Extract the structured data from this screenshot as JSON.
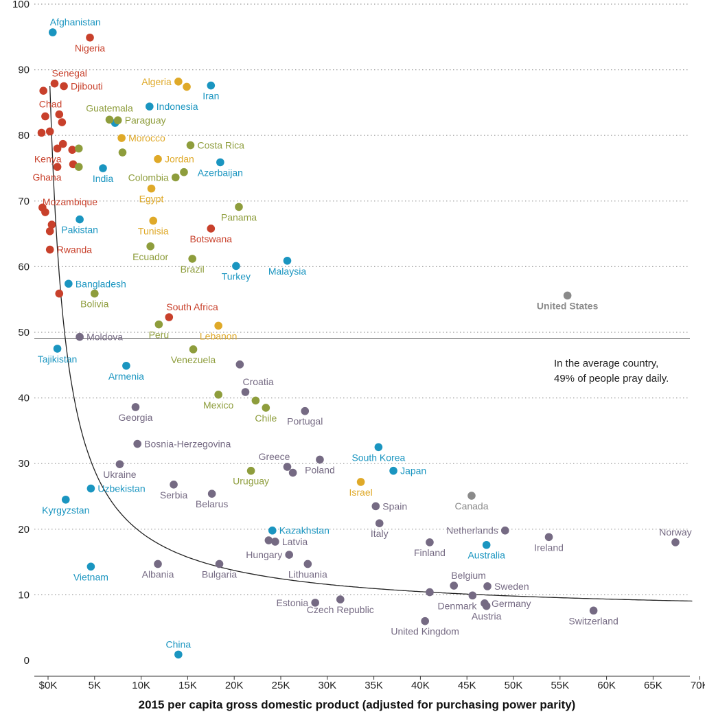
{
  "colors": {
    "Africa": "#c8402b",
    "Asia": "#1a95c0",
    "Middle East": "#dfa928",
    "Latin America": "#8e9d3c",
    "Europe": "#756a83",
    "North America": "#8a8a8a"
  },
  "chart_data": {
    "type": "scatter",
    "title": "",
    "xlabel": "2015 per capita gross domestic product (adjusted for purchasing power parity)",
    "ylabel": "",
    "xlim": [
      -2000,
      70000
    ],
    "ylim": [
      0,
      100
    ],
    "x_ticks": [
      0,
      5000,
      10000,
      15000,
      20000,
      25000,
      30000,
      35000,
      40000,
      45000,
      50000,
      55000,
      60000,
      65000,
      70000
    ],
    "x_tick_labels": [
      "$0K",
      "5K",
      "10K",
      "15K",
      "20K",
      "25K",
      "30K",
      "35K",
      "40K",
      "45K",
      "50K",
      "55K",
      "60K",
      "65K",
      "70K"
    ],
    "y_ticks": [
      0,
      10,
      20,
      30,
      40,
      50,
      60,
      70,
      80,
      90,
      100
    ],
    "y_tick_labels": [
      "0",
      "10",
      "20",
      "30",
      "40",
      "50",
      "60",
      "70",
      "80",
      "90",
      "100"
    ],
    "grid": "horizontal dotted",
    "average_line": {
      "y": 49,
      "label_line1": "In the average country,",
      "label_line2": "49% of people pray daily."
    },
    "trend_curve": true,
    "points": [
      {
        "x": 500,
        "y": 95.7,
        "label": "Afghanistan",
        "region": "Asia",
        "lp": "tr"
      },
      {
        "x": 4500,
        "y": 94.9,
        "label": "Nigeria",
        "region": "Africa",
        "lp": "b"
      },
      {
        "x": 700,
        "y": 87.9,
        "label": "Senegal",
        "region": "Africa",
        "lp": "tr"
      },
      {
        "x": 1700,
        "y": 87.5,
        "label": "Djibouti",
        "region": "Africa",
        "lp": "r"
      },
      {
        "x": -500,
        "y": 86.8,
        "label": "",
        "region": "Africa"
      },
      {
        "x": 1200,
        "y": 83.2,
        "label": "Chad",
        "region": "Africa",
        "lp": "tl"
      },
      {
        "x": -300,
        "y": 82.9,
        "label": "",
        "region": "Africa"
      },
      {
        "x": 1500,
        "y": 82.0,
        "label": "",
        "region": "Africa"
      },
      {
        "x": -700,
        "y": 80.4,
        "label": "",
        "region": "Africa"
      },
      {
        "x": 200,
        "y": 80.6,
        "label": "",
        "region": "Africa"
      },
      {
        "x": 1600,
        "y": 78.7,
        "label": "",
        "region": "Africa"
      },
      {
        "x": 2600,
        "y": 77.8,
        "label": "",
        "region": "Africa"
      },
      {
        "x": 2700,
        "y": 75.6,
        "label": "",
        "region": "Africa"
      },
      {
        "x": 1000,
        "y": 78.0,
        "label": "Kenya",
        "region": "Africa",
        "lp": "bl"
      },
      {
        "x": 1000,
        "y": 75.2,
        "label": "Ghana",
        "region": "Africa",
        "lp": "bl"
      },
      {
        "x": -600,
        "y": 69.0,
        "label": "",
        "region": "Africa"
      },
      {
        "x": -300,
        "y": 68.3,
        "label": "Mozambique",
        "region": "Africa",
        "lp": "tr"
      },
      {
        "x": 400,
        "y": 66.4,
        "label": "",
        "region": "Africa"
      },
      {
        "x": 200,
        "y": 65.4,
        "label": "",
        "region": "Africa"
      },
      {
        "x": 200,
        "y": 62.6,
        "label": "Rwanda",
        "region": "Africa",
        "lp": "r"
      },
      {
        "x": 1200,
        "y": 55.9,
        "label": "",
        "region": "Africa"
      },
      {
        "x": 17500,
        "y": 65.8,
        "label": "Botswana",
        "region": "Africa",
        "lp": "b"
      },
      {
        "x": 13000,
        "y": 52.3,
        "label": "South Africa",
        "region": "Africa",
        "lp": "tr"
      },
      {
        "x": 17500,
        "y": 87.6,
        "label": "Iran",
        "region": "Asia",
        "lp": "b"
      },
      {
        "x": 10900,
        "y": 84.4,
        "label": "Indonesia",
        "region": "Asia",
        "lp": "r"
      },
      {
        "x": 7200,
        "y": 81.9,
        "label": "",
        "region": "Asia"
      },
      {
        "x": 18500,
        "y": 75.9,
        "label": "Azerbaijan",
        "region": "Asia",
        "lp": "b"
      },
      {
        "x": 5900,
        "y": 75.0,
        "label": "India",
        "region": "Asia",
        "lp": "b"
      },
      {
        "x": 3400,
        "y": 67.2,
        "label": "Pakistan",
        "region": "Asia",
        "lp": "b"
      },
      {
        "x": 20200,
        "y": 60.1,
        "label": "Turkey",
        "region": "Asia",
        "lp": "b"
      },
      {
        "x": 25700,
        "y": 60.9,
        "label": "Malaysia",
        "region": "Asia",
        "lp": "b"
      },
      {
        "x": 2200,
        "y": 57.4,
        "label": "Bangladesh",
        "region": "Asia",
        "lp": "r"
      },
      {
        "x": 1000,
        "y": 47.5,
        "label": "Tajikistan",
        "region": "Asia",
        "lp": "b"
      },
      {
        "x": 8400,
        "y": 44.9,
        "label": "Armenia",
        "region": "Asia",
        "lp": "b"
      },
      {
        "x": 35500,
        "y": 32.5,
        "label": "South Korea",
        "region": "Asia",
        "lp": "b"
      },
      {
        "x": 37100,
        "y": 28.9,
        "label": "Japan",
        "region": "Asia",
        "lp": "r"
      },
      {
        "x": 4600,
        "y": 26.2,
        "label": "Uzbekistan",
        "region": "Asia",
        "lp": "r"
      },
      {
        "x": 1900,
        "y": 24.5,
        "label": "Kyrgyzstan",
        "region": "Asia",
        "lp": "b"
      },
      {
        "x": 24100,
        "y": 19.8,
        "label": "Kazakhstan",
        "region": "Asia",
        "lp": "r"
      },
      {
        "x": 47100,
        "y": 17.6,
        "label": "Australia",
        "region": "Asia",
        "lp": "b"
      },
      {
        "x": 4600,
        "y": 14.3,
        "label": "Vietnam",
        "region": "Asia",
        "lp": "b"
      },
      {
        "x": 14000,
        "y": 0.9,
        "label": "China",
        "region": "Asia",
        "lp": "t"
      },
      {
        "x": 14000,
        "y": 88.2,
        "label": "Algeria",
        "region": "Middle East",
        "lp": "l"
      },
      {
        "x": 14900,
        "y": 87.4,
        "label": "",
        "region": "Middle East"
      },
      {
        "x": 7900,
        "y": 79.6,
        "label": "Morocco",
        "region": "Middle East",
        "lp": "r"
      },
      {
        "x": 11800,
        "y": 76.4,
        "label": "Jordan",
        "region": "Middle East",
        "lp": "r"
      },
      {
        "x": 11100,
        "y": 71.9,
        "label": "Egypt",
        "region": "Middle East",
        "lp": "b"
      },
      {
        "x": 11300,
        "y": 67.0,
        "label": "Tunisia",
        "region": "Middle East",
        "lp": "b"
      },
      {
        "x": 18300,
        "y": 51.0,
        "label": "Lebanon",
        "region": "Middle East",
        "lp": "b"
      },
      {
        "x": 33600,
        "y": 27.2,
        "label": "Israel",
        "region": "Middle East",
        "lp": "b"
      },
      {
        "x": 6600,
        "y": 82.4,
        "label": "Guatemala",
        "region": "Latin America",
        "lp": "tc"
      },
      {
        "x": 7500,
        "y": 82.3,
        "label": "Paraguay",
        "region": "Latin America",
        "lp": "r"
      },
      {
        "x": 3300,
        "y": 78.0,
        "label": "",
        "region": "Latin America"
      },
      {
        "x": 8000,
        "y": 77.4,
        "label": "",
        "region": "Latin America"
      },
      {
        "x": 3300,
        "y": 75.2,
        "label": "",
        "region": "Latin America"
      },
      {
        "x": 15300,
        "y": 78.5,
        "label": "Costa Rica",
        "region": "Latin America",
        "lp": "r"
      },
      {
        "x": 14600,
        "y": 74.4,
        "label": "",
        "region": "Latin America"
      },
      {
        "x": 13700,
        "y": 73.6,
        "label": "Colombia",
        "region": "Latin America",
        "lp": "l"
      },
      {
        "x": 20500,
        "y": 69.1,
        "label": "Panama",
        "region": "Latin America",
        "lp": "b"
      },
      {
        "x": 11000,
        "y": 63.1,
        "label": "Ecuador",
        "region": "Latin America",
        "lp": "b"
      },
      {
        "x": 15500,
        "y": 61.2,
        "label": "Brazil",
        "region": "Latin America",
        "lp": "b"
      },
      {
        "x": 5000,
        "y": 55.9,
        "label": "Bolivia",
        "region": "Latin America",
        "lp": "b"
      },
      {
        "x": 11900,
        "y": 51.2,
        "label": "Peru",
        "region": "Latin America",
        "lp": "b"
      },
      {
        "x": 15600,
        "y": 47.4,
        "label": "Venezuela",
        "region": "Latin America",
        "lp": "b"
      },
      {
        "x": 18300,
        "y": 40.5,
        "label": "Mexico",
        "region": "Latin America",
        "lp": "b"
      },
      {
        "x": 22300,
        "y": 39.6,
        "label": "",
        "region": "Latin America"
      },
      {
        "x": 23400,
        "y": 38.5,
        "label": "Chile",
        "region": "Latin America",
        "lp": "b"
      },
      {
        "x": 21800,
        "y": 28.9,
        "label": "Uruguay",
        "region": "Latin America",
        "lp": "b"
      },
      {
        "x": 3400,
        "y": 49.3,
        "label": "Moldova",
        "region": "Europe",
        "lp": "r"
      },
      {
        "x": 20600,
        "y": 45.1,
        "label": "",
        "region": "Europe"
      },
      {
        "x": 21200,
        "y": 40.9,
        "label": "Croatia",
        "region": "Europe",
        "lp": "tr"
      },
      {
        "x": 27600,
        "y": 38.0,
        "label": "Portugal",
        "region": "Europe",
        "lp": "b"
      },
      {
        "x": 9400,
        "y": 38.6,
        "label": "Georgia",
        "region": "Europe",
        "lp": "b"
      },
      {
        "x": 9600,
        "y": 33.0,
        "label": "Bosnia-Herzegovina",
        "region": "Europe",
        "lp": "r"
      },
      {
        "x": 25700,
        "y": 29.5,
        "label": "Greece",
        "region": "Europe",
        "lp": "tl"
      },
      {
        "x": 26300,
        "y": 28.6,
        "label": "",
        "region": "Europe"
      },
      {
        "x": 29200,
        "y": 30.6,
        "label": "Poland",
        "region": "Europe",
        "lp": "b"
      },
      {
        "x": 7700,
        "y": 29.9,
        "label": "Ukraine",
        "region": "Europe",
        "lp": "b"
      },
      {
        "x": 13500,
        "y": 26.8,
        "label": "Serbia",
        "region": "Europe",
        "lp": "b"
      },
      {
        "x": 17600,
        "y": 25.4,
        "label": "Belarus",
        "region": "Europe",
        "lp": "b"
      },
      {
        "x": 35200,
        "y": 23.5,
        "label": "Spain",
        "region": "Europe",
        "lp": "r"
      },
      {
        "x": 35600,
        "y": 20.9,
        "label": "Italy",
        "region": "Europe",
        "lp": "b"
      },
      {
        "x": 23700,
        "y": 18.3,
        "label": "",
        "region": "Europe"
      },
      {
        "x": 24400,
        "y": 18.1,
        "label": "Latvia",
        "region": "Europe",
        "lp": "r"
      },
      {
        "x": 25900,
        "y": 16.1,
        "label": "Hungary",
        "region": "Europe",
        "lp": "l"
      },
      {
        "x": 27900,
        "y": 14.7,
        "label": "Lithuania",
        "region": "Europe",
        "lp": "b"
      },
      {
        "x": 11800,
        "y": 14.7,
        "label": "Albania",
        "region": "Europe",
        "lp": "b"
      },
      {
        "x": 18400,
        "y": 14.7,
        "label": "Bulgaria",
        "region": "Europe",
        "lp": "b"
      },
      {
        "x": 41000,
        "y": 18.0,
        "label": "Finland",
        "region": "Europe",
        "lp": "b"
      },
      {
        "x": 49100,
        "y": 19.8,
        "label": "Netherlands",
        "region": "Europe",
        "lp": "l"
      },
      {
        "x": 53800,
        "y": 18.8,
        "label": "Ireland",
        "region": "Europe",
        "lp": "b"
      },
      {
        "x": 67400,
        "y": 18.0,
        "label": "Norway",
        "region": "Europe",
        "lp": "t"
      },
      {
        "x": 43600,
        "y": 11.4,
        "label": "Belgium",
        "region": "Europe",
        "lp": "tr"
      },
      {
        "x": 47200,
        "y": 11.3,
        "label": "Sweden",
        "region": "Europe",
        "lp": "r"
      },
      {
        "x": 41000,
        "y": 10.4,
        "label": "",
        "region": "Europe"
      },
      {
        "x": 45600,
        "y": 9.9,
        "label": "Denmark",
        "region": "Europe",
        "lp": "bl"
      },
      {
        "x": 46900,
        "y": 8.7,
        "label": "Germany",
        "region": "Europe",
        "lp": "r"
      },
      {
        "x": 47100,
        "y": 8.3,
        "label": "Austria",
        "region": "Europe",
        "lp": "b"
      },
      {
        "x": 28700,
        "y": 8.8,
        "label": "Estonia",
        "region": "Europe",
        "lp": "l"
      },
      {
        "x": 31400,
        "y": 9.3,
        "label": "Czech Republic",
        "region": "Europe",
        "lp": "b"
      },
      {
        "x": 40500,
        "y": 6.0,
        "label": "United Kingdom",
        "region": "Europe",
        "lp": "b"
      },
      {
        "x": 58600,
        "y": 7.6,
        "label": "Switzerland",
        "region": "Europe",
        "lp": "b"
      },
      {
        "x": 55800,
        "y": 55.6,
        "label": "United States",
        "region": "North America",
        "lp": "b",
        "bold": true
      },
      {
        "x": 45500,
        "y": 25.1,
        "label": "Canada",
        "region": "North America",
        "lp": "b"
      }
    ]
  }
}
